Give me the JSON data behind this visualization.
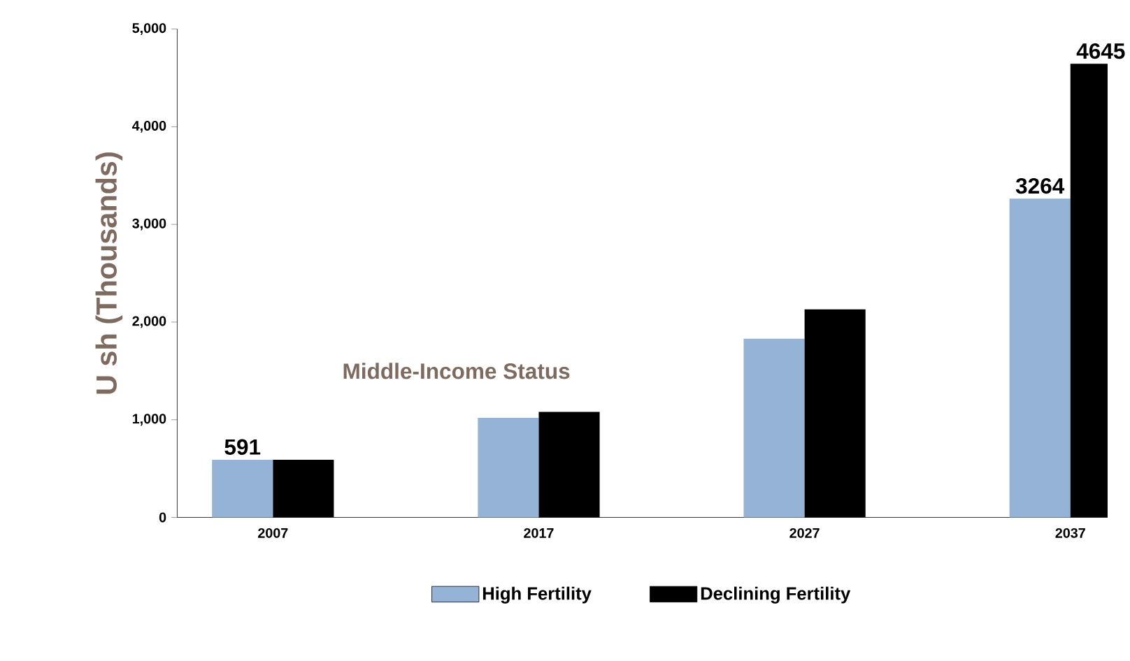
{
  "chart_data": {
    "type": "bar",
    "ylabel": "U sh (Thousands)",
    "categories": [
      "2007",
      "2017",
      "2027",
      "2037"
    ],
    "series": [
      {
        "name": "High Fertility",
        "color": "#95b3d7",
        "values": [
          591,
          1020,
          1830,
          3264
        ],
        "value_labels": [
          "591",
          null,
          null,
          "3264"
        ]
      },
      {
        "name": "Declining Fertility",
        "color": "#000000",
        "values": [
          590,
          1080,
          2130,
          4645
        ],
        "value_labels": [
          null,
          null,
          null,
          "4645"
        ]
      }
    ],
    "ylim": [
      0,
      5000
    ],
    "yticks": [
      0,
      {
        "value": 1000,
        "label": "1,000"
      },
      {
        "value": 2000,
        "label": "2,000"
      },
      {
        "value": 3000,
        "label": "3,000"
      },
      {
        "value": 4000,
        "label": "4,000"
      },
      {
        "value": 5000,
        "label": "5,000"
      }
    ],
    "annotations": [
      "Middle-Income Status"
    ],
    "legend": "bottom",
    "grid": false
  }
}
